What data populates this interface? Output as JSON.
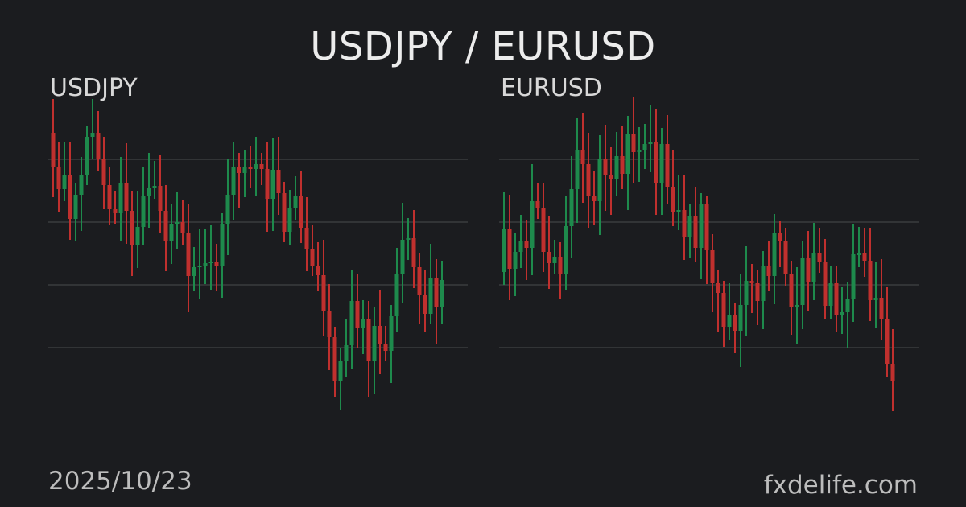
{
  "title": "USDJPY / EURUSD",
  "date": "2025/10/23",
  "brand": "fxdelife.com",
  "colors": {
    "background": "#1b1c1f",
    "up": "#1e8a4c",
    "down": "#c0302e",
    "grid": "#4a4b4e"
  },
  "chart_data": [
    {
      "type": "candlestick",
      "title": "USDJPY",
      "grid": true,
      "ylim": [
        -1,
        40
      ],
      "ohlc_note_fields": [
        "open",
        "high",
        "low",
        "close"
      ],
      "candles": [
        [
          35.5,
          39.7,
          27.5,
          31.3
        ],
        [
          31.3,
          34.3,
          25.7,
          28.5
        ],
        [
          28.5,
          34.3,
          27.0,
          30.3
        ],
        [
          30.3,
          34.3,
          22.2,
          24.8
        ],
        [
          24.8,
          29.2,
          22.0,
          27.8
        ],
        [
          27.8,
          32.5,
          23.3,
          30.3
        ],
        [
          30.3,
          36.3,
          29.0,
          35.0
        ],
        [
          35.0,
          39.7,
          32.3,
          35.5
        ],
        [
          35.5,
          38.2,
          30.8,
          32.2
        ],
        [
          32.2,
          35.0,
          26.0,
          29.0
        ],
        [
          29.0,
          31.2,
          24.0,
          26.0
        ],
        [
          26.0,
          28.3,
          24.2,
          25.5
        ],
        [
          25.5,
          32.5,
          22.0,
          29.3
        ],
        [
          29.3,
          34.2,
          21.7,
          25.8
        ],
        [
          25.8,
          28.3,
          17.7,
          21.5
        ],
        [
          21.5,
          28.3,
          18.7,
          23.8
        ],
        [
          23.8,
          31.3,
          21.5,
          27.7
        ],
        [
          27.7,
          33.0,
          23.7,
          28.7
        ],
        [
          28.7,
          32.0,
          27.3,
          28.9
        ],
        [
          28.9,
          32.7,
          23.0,
          25.8
        ],
        [
          25.8,
          29.0,
          18.3,
          22.0
        ],
        [
          22.0,
          26.7,
          19.2,
          24.2
        ],
        [
          24.2,
          28.2,
          21.0,
          24.4
        ],
        [
          24.4,
          27.2,
          21.5,
          23.0
        ],
        [
          23.0,
          26.7,
          13.2,
          17.7
        ],
        [
          17.7,
          21.3,
          15.8,
          18.8
        ],
        [
          18.8,
          23.5,
          14.8,
          19.0
        ],
        [
          19.0,
          23.5,
          16.7,
          19.3
        ],
        [
          19.3,
          24.0,
          16.0,
          19.5
        ],
        [
          19.5,
          21.7,
          15.8,
          19.0
        ],
        [
          19.0,
          25.5,
          15.0,
          24.2
        ],
        [
          24.2,
          32.2,
          20.3,
          27.8
        ],
        [
          27.8,
          34.3,
          24.7,
          31.3
        ],
        [
          31.3,
          33.0,
          26.2,
          30.5
        ],
        [
          30.5,
          33.3,
          27.5,
          31.3
        ],
        [
          31.3,
          33.8,
          28.7,
          31.0
        ],
        [
          31.0,
          35.0,
          27.7,
          31.6
        ],
        [
          31.6,
          33.0,
          29.0,
          31.0
        ],
        [
          31.0,
          34.4,
          23.2,
          27.3
        ],
        [
          27.3,
          34.8,
          23.3,
          30.9
        ],
        [
          30.9,
          35.0,
          25.3,
          28.0
        ],
        [
          28.0,
          29.4,
          21.9,
          23.2
        ],
        [
          23.2,
          28.4,
          21.6,
          26.2
        ],
        [
          26.2,
          30.1,
          24.7,
          27.6
        ],
        [
          27.6,
          30.7,
          21.8,
          23.7
        ],
        [
          23.7,
          27.5,
          18.3,
          21.1
        ],
        [
          21.1,
          24.1,
          17.7,
          19.0
        ],
        [
          19.0,
          21.9,
          15.8,
          17.8
        ],
        [
          17.8,
          22.2,
          10.3,
          13.3
        ],
        [
          13.3,
          16.7,
          6.0,
          10.1
        ],
        [
          10.1,
          11.4,
          2.7,
          4.6
        ],
        [
          4.6,
          8.8,
          1.0,
          7.1
        ],
        [
          7.1,
          12.3,
          5.1,
          9.1
        ],
        [
          9.1,
          18.5,
          6.1,
          14.6
        ],
        [
          14.6,
          18.0,
          8.8,
          11.3
        ],
        [
          11.3,
          14.7,
          8.0,
          12.3
        ],
        [
          12.3,
          14.6,
          2.7,
          7.2
        ],
        [
          7.2,
          13.9,
          3.1,
          11.5
        ],
        [
          11.5,
          16.0,
          5.5,
          9.3
        ],
        [
          9.3,
          11.5,
          7.1,
          8.4
        ],
        [
          8.4,
          14.1,
          4.4,
          12.7
        ],
        [
          12.7,
          21.2,
          10.8,
          18.0
        ],
        [
          18.0,
          26.8,
          14.3,
          22.2
        ],
        [
          22.2,
          24.9,
          19.7,
          22.4
        ],
        [
          22.4,
          25.9,
          16.2,
          18.8
        ],
        [
          18.8,
          20.6,
          11.8,
          15.3
        ],
        [
          15.3,
          18.4,
          10.7,
          13.0
        ],
        [
          13.0,
          21.7,
          11.7,
          17.4
        ],
        [
          17.4,
          19.8,
          9.3,
          13.8
        ],
        [
          13.8,
          19.6,
          11.8,
          17.2
        ]
      ]
    },
    {
      "type": "candlestick",
      "title": "EURUSD",
      "grid": true,
      "ylim": [
        -1,
        40
      ],
      "candles": [
        [
          18.2,
          28.2,
          16.6,
          23.6
        ],
        [
          23.6,
          27.8,
          14.7,
          18.6
        ],
        [
          18.6,
          23.1,
          15.2,
          20.7
        ],
        [
          20.7,
          25.3,
          18.7,
          22.0
        ],
        [
          22.0,
          24.7,
          17.2,
          21.2
        ],
        [
          21.2,
          31.6,
          17.8,
          27.0
        ],
        [
          27.0,
          29.2,
          24.8,
          26.2
        ],
        [
          26.2,
          29.3,
          18.2,
          20.7
        ],
        [
          20.7,
          25.2,
          16.1,
          19.3
        ],
        [
          19.3,
          22.2,
          17.9,
          20.1
        ],
        [
          20.1,
          21.9,
          14.8,
          17.9
        ],
        [
          17.9,
          27.6,
          16.0,
          23.9
        ],
        [
          23.9,
          32.6,
          19.9,
          28.5
        ],
        [
          28.5,
          37.3,
          24.3,
          33.3
        ],
        [
          33.3,
          38.0,
          26.8,
          31.6
        ],
        [
          31.6,
          35.5,
          23.7,
          27.6
        ],
        [
          27.6,
          30.8,
          24.0,
          27.0
        ],
        [
          27.0,
          35.2,
          22.8,
          32.2
        ],
        [
          32.2,
          36.5,
          25.8,
          30.3
        ],
        [
          30.3,
          33.7,
          25.3,
          29.8
        ],
        [
          29.8,
          35.6,
          27.7,
          32.6
        ],
        [
          32.6,
          36.3,
          28.5,
          30.4
        ],
        [
          30.4,
          37.6,
          25.9,
          35.3
        ],
        [
          35.3,
          40.0,
          29.2,
          33.1
        ],
        [
          33.1,
          36.2,
          29.4,
          33.3
        ],
        [
          33.3,
          36.6,
          31.0,
          34.1
        ],
        [
          34.1,
          38.9,
          30.6,
          34.3
        ],
        [
          34.3,
          38.5,
          25.3,
          29.2
        ],
        [
          29.2,
          36.1,
          25.3,
          34.1
        ],
        [
          34.1,
          37.7,
          26.6,
          28.8
        ],
        [
          28.8,
          33.3,
          23.9,
          25.7
        ],
        [
          25.7,
          30.3,
          23.4,
          25.9
        ],
        [
          25.9,
          30.3,
          19.7,
          22.5
        ],
        [
          22.5,
          26.6,
          19.9,
          25.1
        ],
        [
          25.1,
          28.8,
          19.5,
          21.2
        ],
        [
          21.2,
          28.0,
          17.3,
          26.6
        ],
        [
          26.6,
          27.7,
          16.7,
          20.9
        ],
        [
          20.9,
          22.9,
          13.2,
          16.8
        ],
        [
          16.8,
          18.4,
          10.7,
          15.6
        ],
        [
          15.6,
          17.1,
          8.9,
          11.4
        ],
        [
          11.4,
          16.8,
          9.7,
          12.9
        ],
        [
          12.9,
          14.3,
          8.1,
          10.9
        ],
        [
          10.9,
          18.0,
          6.4,
          14.1
        ],
        [
          14.1,
          21.4,
          10.2,
          17.1
        ],
        [
          17.1,
          19.2,
          13.1,
          16.8
        ],
        [
          16.8,
          18.4,
          11.6,
          14.6
        ],
        [
          14.6,
          20.8,
          11.1,
          19.0
        ],
        [
          19.0,
          22.1,
          15.8,
          17.7
        ],
        [
          17.7,
          25.4,
          14.2,
          23.1
        ],
        [
          23.1,
          24.5,
          18.8,
          22.1
        ],
        [
          22.1,
          23.7,
          16.4,
          17.9
        ],
        [
          17.9,
          19.6,
          10.4,
          13.9
        ],
        [
          13.9,
          18.8,
          9.3,
          14.1
        ],
        [
          14.1,
          22.0,
          11.1,
          19.9
        ],
        [
          19.9,
          23.3,
          13.4,
          16.9
        ],
        [
          16.9,
          24.3,
          14.7,
          20.5
        ],
        [
          20.5,
          23.7,
          18.1,
          19.5
        ],
        [
          19.5,
          22.3,
          12.3,
          14.0
        ],
        [
          14.0,
          18.9,
          12.4,
          16.8
        ],
        [
          16.8,
          18.9,
          10.8,
          12.9
        ],
        [
          12.9,
          16.3,
          10.5,
          13.2
        ],
        [
          13.2,
          17.0,
          8.7,
          14.9
        ],
        [
          14.9,
          24.2,
          12.0,
          20.4
        ],
        [
          20.4,
          23.8,
          18.8,
          20.5
        ],
        [
          20.5,
          23.7,
          17.6,
          19.6
        ],
        [
          19.6,
          23.7,
          12.1,
          14.7
        ],
        [
          14.7,
          19.5,
          11.2,
          15.0
        ],
        [
          15.0,
          19.8,
          9.8,
          12.4
        ],
        [
          12.4,
          16.3,
          5.1,
          6.8
        ],
        [
          6.8,
          11.1,
          0.9,
          4.6
        ]
      ]
    }
  ]
}
